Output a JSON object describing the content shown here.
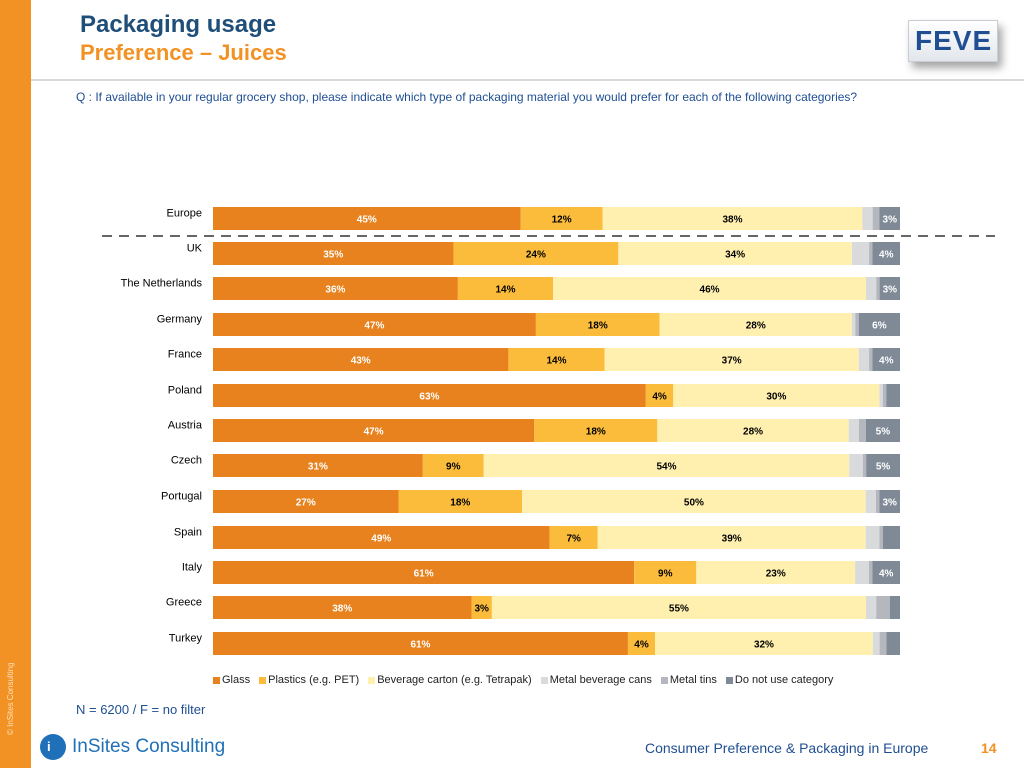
{
  "header": {
    "title": "Packaging usage",
    "subtitle": "Preference – Juices",
    "logo_text": "FEVE",
    "question": "Q : If available in your regular grocery shop, please indicate which type of packaging material you would prefer for each of the following categories?"
  },
  "sidebar": {
    "copyright": "© InSites Consulting"
  },
  "note": "N =  6200 / F = no filter",
  "footer": {
    "brand": "InSites Consulting",
    "brand_icon": "i",
    "text": "Consumer Preference & Packaging in Europe",
    "page": "14"
  },
  "colors": {
    "accent_orange": "#f39224",
    "title_blue": "#1f4e79",
    "text_blue": "#1f4e92"
  },
  "chart_data": {
    "type": "bar",
    "orientation": "horizontal",
    "stacked": true,
    "percent_stacked": true,
    "categories": [
      "Europe",
      "UK",
      "The Netherlands",
      "Germany",
      "France",
      "Poland",
      "Austria",
      "Czech",
      "Portugal",
      "Spain",
      "Italy",
      "Greece",
      "Turkey"
    ],
    "series": [
      {
        "name": "Glass",
        "color": "#e8821e",
        "label_color": "#ffffff",
        "values": [
          45,
          35,
          36,
          47,
          43,
          63,
          47,
          31,
          27,
          49,
          61,
          38,
          61
        ],
        "labels": [
          "45%",
          "35%",
          "36%",
          "47%",
          "43%",
          "63%",
          "47%",
          "31%",
          "27%",
          "49%",
          "61%",
          "38%",
          "61%"
        ]
      },
      {
        "name": "Plastics (e.g. PET)",
        "color": "#fbbc3c",
        "label_color": "#000000",
        "values": [
          12,
          24,
          14,
          18,
          14,
          4,
          18,
          9,
          18,
          7,
          9,
          3,
          4
        ],
        "labels": [
          "12%",
          "24%",
          "14%",
          "18%",
          "14%",
          "4%",
          "18%",
          "9%",
          "18%",
          "7%",
          "9%",
          "3%",
          "4%"
        ]
      },
      {
        "name": "Beverage carton (e.g. Tetrapak)",
        "color": "#fff0b0",
        "label_color": "#000000",
        "values": [
          38,
          34,
          46,
          28,
          37,
          30,
          28,
          54,
          50,
          39,
          23,
          55,
          32
        ],
        "labels": [
          "38%",
          "34%",
          "46%",
          "28%",
          "37%",
          "30%",
          "28%",
          "54%",
          "50%",
          "39%",
          "23%",
          "55%",
          "32%"
        ]
      },
      {
        "name": "Metal beverage cans",
        "color": "#d9dadc",
        "label_color": "#000000",
        "values": [
          1.5,
          2.5,
          1.5,
          0.5,
          1.5,
          0.5,
          1.5,
          2,
          1.5,
          2,
          2,
          1.5,
          1
        ],
        "labels": [
          "",
          "",
          "",
          "",
          "",
          "",
          "",
          "",
          "",
          "",
          "",
          "",
          ""
        ]
      },
      {
        "name": "Metal tins",
        "color": "#b4b8be",
        "label_color": "#000000",
        "values": [
          1,
          0.5,
          0.5,
          0.5,
          0.5,
          0.5,
          1,
          0.5,
          0.5,
          0.5,
          0.5,
          2,
          1
        ],
        "labels": [
          "",
          "",
          "",
          "",
          "",
          "",
          "",
          "",
          "",
          "",
          "",
          "",
          ""
        ]
      },
      {
        "name": "Do not use category",
        "color": "#7f8a96",
        "label_color": "#ffffff",
        "values": [
          3,
          4,
          3,
          6,
          4,
          2,
          5,
          5,
          3,
          2.5,
          4,
          1.5,
          2
        ],
        "labels": [
          "3%",
          "4%",
          "3%",
          "6%",
          "4%",
          "",
          "5%",
          "5%",
          "3%",
          "",
          "4%",
          "",
          ""
        ]
      }
    ],
    "xlim": [
      0,
      100
    ],
    "grid": false,
    "legend_position": "bottom",
    "separator_after": "Europe"
  }
}
